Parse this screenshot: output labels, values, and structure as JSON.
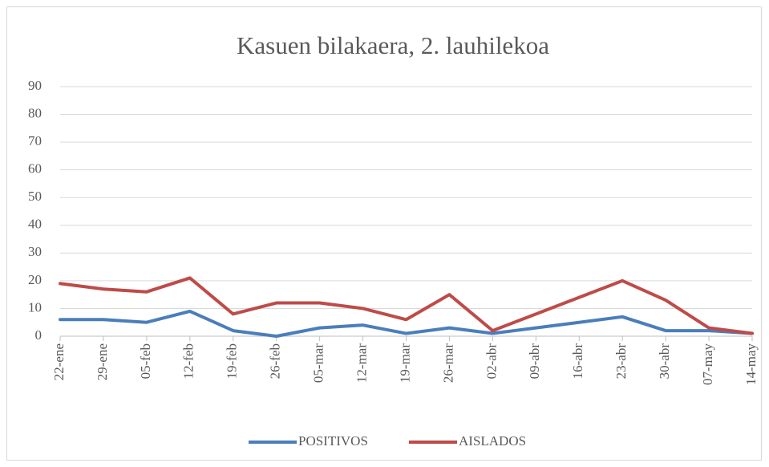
{
  "chart_data": {
    "type": "line",
    "title": "Kasuen bilakaera, 2. lauhilekoa",
    "categories": [
      "22-ene",
      "29-ene",
      "05-feb",
      "12-feb",
      "19-feb",
      "26-feb",
      "05-mar",
      "12-mar",
      "19-mar",
      "26-mar",
      "02-abr",
      "09-abr",
      "16-abr",
      "23-abr",
      "30-abr",
      "07-may",
      "14-may"
    ],
    "series": [
      {
        "name": "POSITIVOS",
        "color": "#4a7ebb",
        "values": [
          6,
          6,
          5,
          9,
          2,
          0,
          3,
          4,
          1,
          3,
          1,
          3,
          5,
          7,
          2,
          2,
          1
        ]
      },
      {
        "name": "AISLADOS",
        "color": "#be4b48",
        "values": [
          19,
          17,
          16,
          21,
          8,
          12,
          12,
          10,
          6,
          15,
          2,
          8,
          14,
          20,
          13,
          3,
          1
        ]
      }
    ],
    "ylim": [
      0,
      90
    ],
    "yticks": [
      0,
      10,
      20,
      30,
      40,
      50,
      60,
      70,
      80,
      90
    ],
    "grid": true,
    "legend": "bottom"
  }
}
